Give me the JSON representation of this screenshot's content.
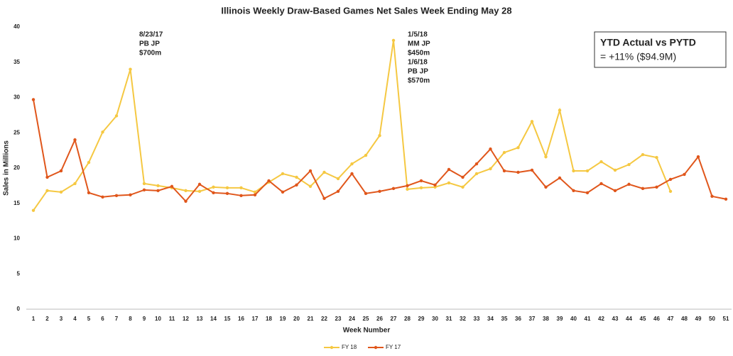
{
  "chart_data": {
    "type": "line",
    "title": "Illinois Weekly Draw-Based Games Net Sales Week Ending May 28",
    "x_label": "Week Number",
    "y_label": "Sales in Millions",
    "categories": [
      "1",
      "2",
      "3",
      "4",
      "5",
      "6",
      "7",
      "8",
      "9",
      "10",
      "11",
      "12",
      "13",
      "14",
      "15",
      "16",
      "17",
      "18",
      "19",
      "20",
      "21",
      "22",
      "23",
      "24",
      "25",
      "26",
      "27",
      "28",
      "29",
      "30",
      "31",
      "32",
      "33",
      "34",
      "35",
      "36",
      "37",
      "38",
      "39",
      "40",
      "41",
      "42",
      "43",
      "44",
      "45",
      "46",
      "47",
      "48",
      "49",
      "50",
      "51"
    ],
    "series": [
      {
        "name": "FY 18",
        "color": "#f5c842",
        "values": [
          14.0,
          16.8,
          16.6,
          17.8,
          20.8,
          25.1,
          27.4,
          34.0,
          17.8,
          17.5,
          17.2,
          16.8,
          16.7,
          17.3,
          17.2,
          17.2,
          16.6,
          18.0,
          19.2,
          18.7,
          17.4,
          19.4,
          18.5,
          20.6,
          21.8,
          24.6,
          38.1,
          17.0,
          17.2,
          17.3,
          17.9,
          17.3,
          19.2,
          19.9,
          22.2,
          22.9,
          26.6,
          21.6,
          28.2,
          19.6,
          19.6,
          20.9,
          19.7,
          20.5,
          21.9,
          21.5,
          16.7,
          null,
          null,
          null,
          null
        ]
      },
      {
        "name": "FY 17",
        "color": "#e0561b",
        "values": [
          29.7,
          18.7,
          19.6,
          24.0,
          16.5,
          15.9,
          16.1,
          16.2,
          16.9,
          16.8,
          17.4,
          15.3,
          17.7,
          16.5,
          16.4,
          16.1,
          16.2,
          18.2,
          16.6,
          17.6,
          19.6,
          15.7,
          16.7,
          19.2,
          16.4,
          16.7,
          17.1,
          17.5,
          18.2,
          17.6,
          19.8,
          18.7,
          20.6,
          22.7,
          19.6,
          19.4,
          19.7,
          17.3,
          18.6,
          16.8,
          16.5,
          17.8,
          16.8,
          17.7,
          17.1,
          17.3,
          18.4,
          19.1,
          21.6,
          16.0,
          15.6
        ]
      }
    ],
    "ylim": [
      0,
      40
    ],
    "yticks": [
      0,
      5,
      10,
      15,
      20,
      25,
      30,
      35,
      40
    ],
    "grid": false,
    "legend": "bottom",
    "annotations": [
      {
        "lines": [
          "8/23/17",
          "PB JP",
          "$700m"
        ]
      },
      {
        "lines": [
          "1/5/18",
          "MM JP",
          "$450m",
          "1/6/18",
          "PB JP",
          "$570m"
        ]
      }
    ],
    "callout": {
      "title": "YTD Actual vs PYTD",
      "text": "= +11% ($94.9M)"
    }
  }
}
